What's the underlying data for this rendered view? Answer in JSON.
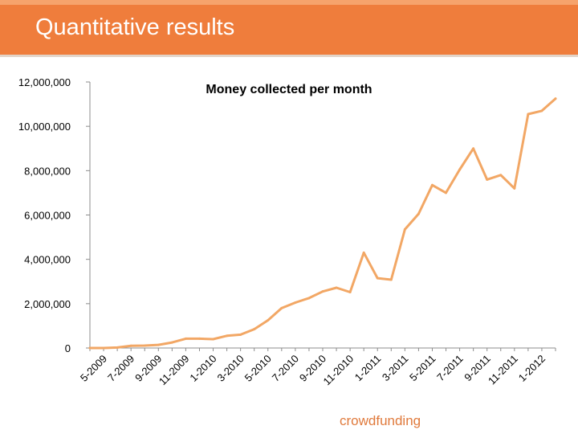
{
  "slide": {
    "title": "Quantitative results",
    "footer": "crowdfunding",
    "accent_color": "#ef7d3c",
    "line_color": "#f2a765"
  },
  "chart_data": {
    "type": "line",
    "title": "Money collected per month",
    "xlabel": "",
    "ylabel": "",
    "ylim": [
      0,
      12000000
    ],
    "yticks": [
      0,
      2000000,
      4000000,
      6000000,
      8000000,
      10000000,
      12000000
    ],
    "ytick_labels": [
      "0",
      "2,000,000",
      "4,000,000",
      "6,000,000",
      "8,000,000",
      "10,000,000",
      "12,000,000"
    ],
    "xtick_labels": [
      "5-2009",
      "7-2009",
      "9-2009",
      "11-2009",
      "1-2010",
      "3-2010",
      "5-2010",
      "7-2010",
      "9-2010",
      "11-2010",
      "1-2011",
      "3-2011",
      "5-2011",
      "7-2011",
      "9-2011",
      "11-2011",
      "1-2012"
    ],
    "series": [
      {
        "name": "Money collected per month",
        "x": [
          "4-2009",
          "5-2009",
          "6-2009",
          "7-2009",
          "8-2009",
          "9-2009",
          "10-2009",
          "11-2009",
          "12-2009",
          "1-2010",
          "2-2010",
          "3-2010",
          "4-2010",
          "5-2010",
          "6-2010",
          "7-2010",
          "8-2010",
          "9-2010",
          "10-2010",
          "11-2010",
          "12-2010",
          "1-2011",
          "2-2011",
          "3-2011",
          "4-2011",
          "5-2011",
          "6-2011",
          "7-2011",
          "8-2011",
          "9-2011",
          "10-2011",
          "11-2011",
          "12-2011",
          "1-2012",
          "2-2012"
        ],
        "values": [
          0,
          0,
          20000,
          100000,
          110000,
          140000,
          250000,
          420000,
          420000,
          400000,
          550000,
          600000,
          850000,
          1250000,
          1800000,
          2050000,
          2250000,
          2550000,
          2720000,
          2520000,
          4300000,
          3150000,
          3080000,
          5350000,
          6050000,
          7350000,
          7000000,
          8050000,
          9000000,
          7600000,
          7800000,
          7200000,
          10550000,
          10700000,
          11250000
        ]
      }
    ]
  }
}
